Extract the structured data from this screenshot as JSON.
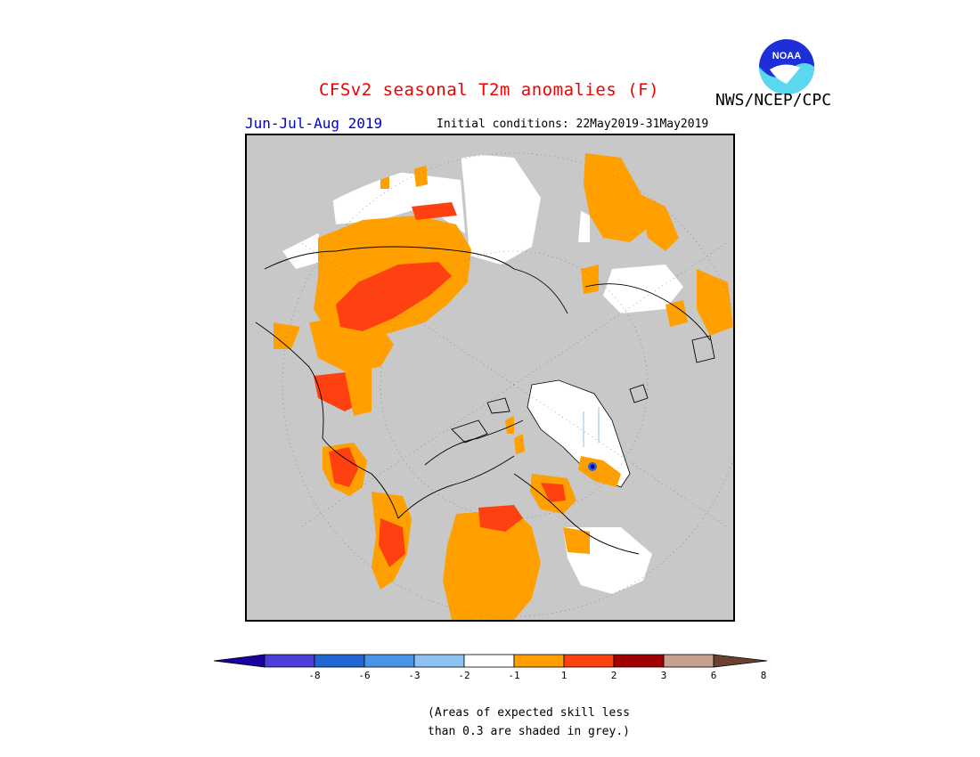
{
  "title": "CFSv2 seasonal T2m anomalies (F)",
  "agency": "NWS/NCEP/CPC",
  "season": "Jun-Jul-Aug 2019",
  "initial_conditions": "Initial conditions: 22May2019-31May2019",
  "logo_text": "NOAA",
  "note_line1": "(Areas of expected skill less",
  "note_line2": "than 0.3 are shaded in grey.)",
  "colors": {
    "no_skill_grey": "#c8c8c8",
    "ocean": "#c8c8c8"
  },
  "colorbar": {
    "labels": [
      "-8",
      "-6",
      "-3",
      "-2",
      "-1",
      "1",
      "2",
      "3",
      "6",
      "8"
    ],
    "colors": [
      "#1a00a0",
      "#4c3ed6",
      "#2166d3",
      "#4a94e8",
      "#8ec2f2",
      "#ffffff",
      "#ffa000",
      "#ff4010",
      "#a00000",
      "#c8a090",
      "#6c4030"
    ]
  }
}
